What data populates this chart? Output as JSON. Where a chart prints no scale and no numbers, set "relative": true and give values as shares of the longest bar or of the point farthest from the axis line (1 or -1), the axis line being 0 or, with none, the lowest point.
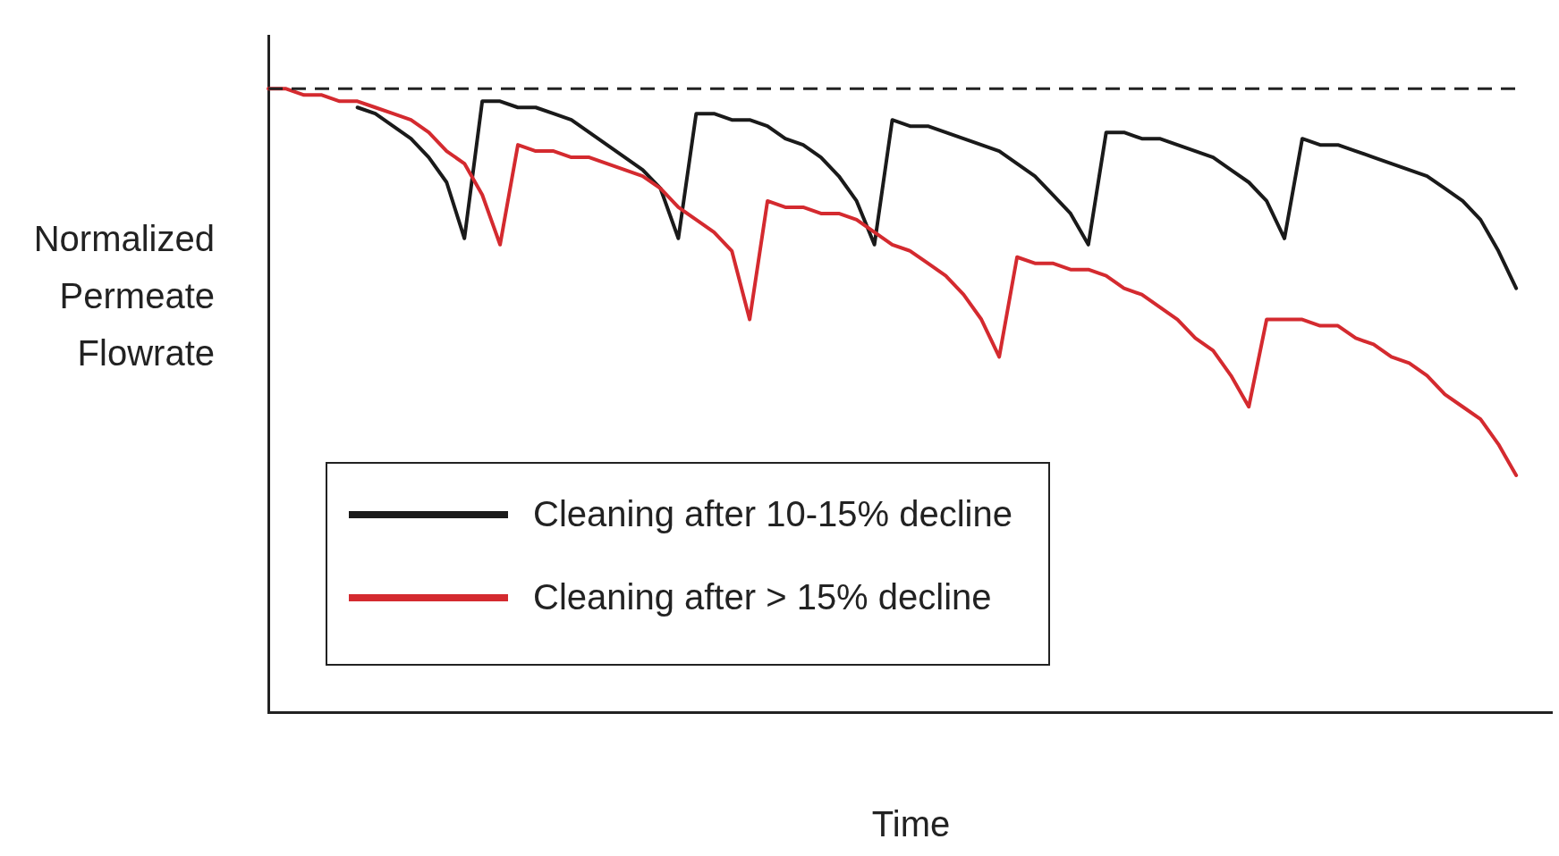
{
  "chart_data": {
    "type": "line",
    "relative": true,
    "xlabel": "Time",
    "ylabel": "Normalized Permeate Flowrate",
    "legend": "bottom left",
    "marker": "none",
    "line_style": "solid",
    "categories": [
      null,
      null,
      null,
      null,
      null,
      null,
      null,
      null,
      null,
      null,
      null,
      null,
      null,
      null,
      null,
      null,
      null,
      null,
      null,
      null,
      null,
      null,
      null,
      null,
      null,
      null,
      null,
      null,
      null,
      null,
      null,
      null,
      null,
      null,
      null,
      null,
      null,
      null,
      null,
      null,
      null,
      null,
      null,
      null,
      null,
      null,
      null,
      null,
      null,
      null,
      null,
      null,
      null,
      null,
      null,
      null,
      null,
      null,
      null,
      null,
      null,
      null,
      null,
      null,
      null,
      null,
      null,
      null,
      null,
      null,
      null,
      null,
      null
    ],
    "ref_lines": [
      {
        "axis": "y",
        "value": 1,
        "line_style": "dashed",
        "color": "#222222"
      }
    ],
    "series": [
      {
        "name": "Cleaning after 10-15% decline",
        "color": "#1a1a1a",
        "values": [
          null,
          null,
          null,
          null,
          null,
          0.97,
          0.96,
          0.94,
          0.92,
          0.89,
          0.85,
          0.76,
          0.98,
          0.98,
          0.97,
          0.97,
          0.96,
          0.95,
          0.93,
          0.91,
          0.89,
          0.87,
          0.84,
          0.76,
          0.96,
          0.96,
          0.95,
          0.95,
          0.94,
          0.92,
          0.91,
          0.89,
          0.86,
          0.82,
          0.75,
          0.95,
          0.94,
          0.94,
          0.93,
          0.92,
          0.91,
          0.9,
          0.88,
          0.86,
          0.83,
          0.8,
          0.75,
          0.93,
          0.93,
          0.92,
          0.92,
          0.91,
          0.9,
          0.89,
          0.87,
          0.85,
          0.82,
          0.76,
          0.92,
          0.91,
          0.91,
          0.9,
          0.89,
          0.88,
          0.87,
          0.86,
          0.84,
          0.82,
          0.79,
          0.74,
          0.68,
          null,
          null
        ]
      },
      {
        "name": "Cleaning after > 15% decline",
        "color": "#d42a2f",
        "values": [
          1,
          1,
          0.99,
          0.99,
          0.98,
          0.98,
          0.97,
          0.96,
          0.95,
          0.93,
          0.9,
          0.88,
          0.83,
          0.75,
          0.91,
          0.9,
          0.9,
          0.89,
          0.89,
          0.88,
          0.87,
          0.86,
          0.84,
          0.81,
          0.79,
          0.77,
          0.74,
          0.63,
          0.82,
          0.81,
          0.81,
          0.8,
          0.8,
          0.79,
          0.77,
          0.75,
          0.74,
          0.72,
          0.7,
          0.67,
          0.63,
          0.57,
          0.73,
          0.72,
          0.72,
          0.71,
          0.71,
          0.7,
          0.68,
          0.67,
          0.65,
          0.63,
          0.6,
          0.58,
          0.54,
          0.49,
          0.63,
          0.63,
          0.63,
          0.62,
          0.62,
          0.6,
          0.59,
          0.57,
          0.56,
          0.54,
          0.51,
          0.49,
          0.47,
          0.43,
          0.38,
          null,
          null
        ]
      }
    ]
  }
}
